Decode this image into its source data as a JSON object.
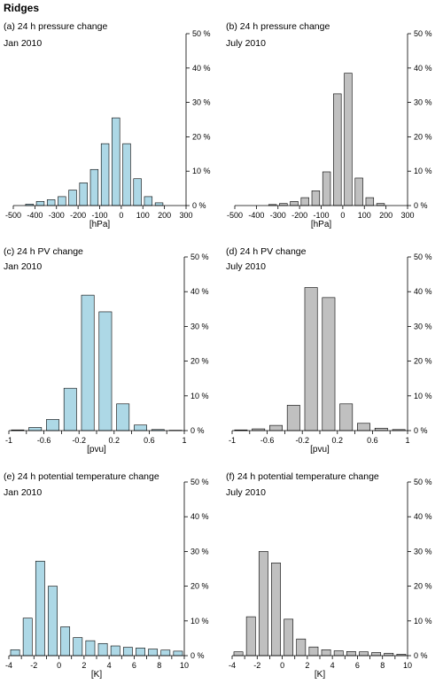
{
  "page_title": "Ridges",
  "colors": {
    "jan": "#add8e6",
    "jul": "#c0c0c0",
    "edge": "#000000"
  },
  "chart_data": [
    {
      "id": "a",
      "type": "bar",
      "title": "(a) 24 h pressure change",
      "subtitle": "Jan 2010",
      "xlabel": "[hPa]",
      "xticks": [
        -500,
        -400,
        -300,
        -200,
        -100,
        0,
        100,
        200,
        300
      ],
      "xlim": [
        -500,
        300
      ],
      "yticks": [
        "0 %",
        "10 %",
        "20 %",
        "30 %",
        "40 %",
        "50 %"
      ],
      "ylim": [
        0,
        50
      ],
      "color": "jan",
      "x": [
        -425,
        -375,
        -325,
        -275,
        -225,
        -175,
        -125,
        -75,
        -25,
        25,
        75,
        125,
        175
      ],
      "values": [
        0.4,
        1.2,
        1.7,
        2.6,
        4.5,
        6.6,
        10.5,
        18.0,
        25.5,
        18.0,
        7.8,
        2.6,
        0.8
      ]
    },
    {
      "id": "b",
      "type": "bar",
      "title": "(b) 24 h pressure change",
      "subtitle": "July 2010",
      "xlabel": "[hPa]",
      "xticks": [
        -500,
        -400,
        -300,
        -200,
        -100,
        0,
        100,
        200,
        300
      ],
      "xlim": [
        -500,
        300
      ],
      "yticks": [
        "0 %",
        "10 %",
        "20 %",
        "30 %",
        "40 %",
        "50 %"
      ],
      "ylim": [
        0,
        50
      ],
      "color": "jul",
      "x": [
        -325,
        -275,
        -225,
        -175,
        -125,
        -75,
        -25,
        25,
        75,
        125,
        175
      ],
      "values": [
        0.3,
        0.6,
        1.2,
        2.3,
        4.3,
        9.8,
        32.5,
        38.5,
        8.0,
        2.3,
        0.6
      ]
    },
    {
      "id": "c",
      "type": "bar",
      "title": "(c) 24 h PV change",
      "subtitle": "Jan 2010",
      "xlabel": "[pvu]",
      "xticks": [
        "-1",
        "",
        "-0.6",
        "",
        "-0.2",
        "",
        "0.2",
        "",
        "0.6",
        "",
        "1"
      ],
      "xlim": [
        -1,
        1
      ],
      "yticks": [
        "0 %",
        "10 %",
        "20 %",
        "30 %",
        "40 %",
        "50 %"
      ],
      "ylim": [
        0,
        50
      ],
      "color": "jan",
      "x": [
        -0.9,
        -0.7,
        -0.5,
        -0.3,
        -0.1,
        0.1,
        0.3,
        0.5,
        0.7,
        0.9
      ],
      "values": [
        0.2,
        0.9,
        3.2,
        12.2,
        39.0,
        34.2,
        7.7,
        1.6,
        0.3,
        0.1
      ]
    },
    {
      "id": "d",
      "type": "bar",
      "title": "(d) 24 h PV change",
      "subtitle": "July 2010",
      "xlabel": "[pvu]",
      "xticks": [
        "-1",
        "",
        "-0.6",
        "",
        "-0.2",
        "",
        "0.2",
        "",
        "0.6",
        "",
        "1"
      ],
      "xlim": [
        -1,
        1
      ],
      "yticks": [
        "0 %",
        "10 %",
        "20 %",
        "30 %",
        "40 %",
        "50 %"
      ],
      "ylim": [
        0,
        50
      ],
      "color": "jul",
      "x": [
        -0.9,
        -0.7,
        -0.5,
        -0.3,
        -0.1,
        0.1,
        0.3,
        0.5,
        0.7,
        0.9
      ],
      "values": [
        0.2,
        0.5,
        1.5,
        7.3,
        41.2,
        38.3,
        7.7,
        2.1,
        0.7,
        0.3
      ]
    },
    {
      "id": "e",
      "type": "bar",
      "title": "(e) 24 h potential temperature change",
      "subtitle": "Jan 2010",
      "xlabel": "[K]",
      "xticks": [
        "-4",
        "",
        "-2",
        "",
        "0",
        "",
        "2",
        "",
        "4",
        "",
        "6",
        "",
        "8",
        "",
        "10"
      ],
      "xlim": [
        -4,
        10
      ],
      "yticks": [
        "0 %",
        "10 %",
        "20 %",
        "30 %",
        "40 %",
        "50 %"
      ],
      "ylim": [
        0,
        50
      ],
      "color": "jan",
      "x": [
        -3.5,
        -2.5,
        -1.5,
        -0.5,
        0.5,
        1.5,
        2.5,
        3.5,
        4.5,
        5.5,
        6.5,
        7.5,
        8.5,
        9.5
      ],
      "values": [
        1.7,
        10.8,
        27.2,
        20.0,
        8.3,
        5.2,
        4.3,
        3.5,
        2.8,
        2.4,
        2.2,
        1.9,
        1.6,
        1.3
      ]
    },
    {
      "id": "f",
      "type": "bar",
      "title": "(f) 24 h potential temperature change",
      "subtitle": "July 2010",
      "xlabel": "[K]",
      "xticks": [
        "-4",
        "",
        "-2",
        "",
        "0",
        "",
        "2",
        "",
        "4",
        "",
        "6",
        "",
        "8",
        "",
        "10"
      ],
      "xlim": [
        -4,
        10
      ],
      "yticks": [
        "0 %",
        "10 %",
        "20 %",
        "30 %",
        "40 %",
        "50 %"
      ],
      "ylim": [
        0,
        50
      ],
      "color": "jul",
      "x": [
        -3.5,
        -2.5,
        -1.5,
        -0.5,
        0.5,
        1.5,
        2.5,
        3.5,
        4.5,
        5.5,
        6.5,
        7.5,
        8.5,
        9.5
      ],
      "values": [
        1.1,
        11.2,
        30.0,
        26.7,
        10.5,
        4.8,
        2.5,
        1.7,
        1.4,
        1.2,
        1.1,
        0.9,
        0.7,
        0.4
      ]
    }
  ]
}
